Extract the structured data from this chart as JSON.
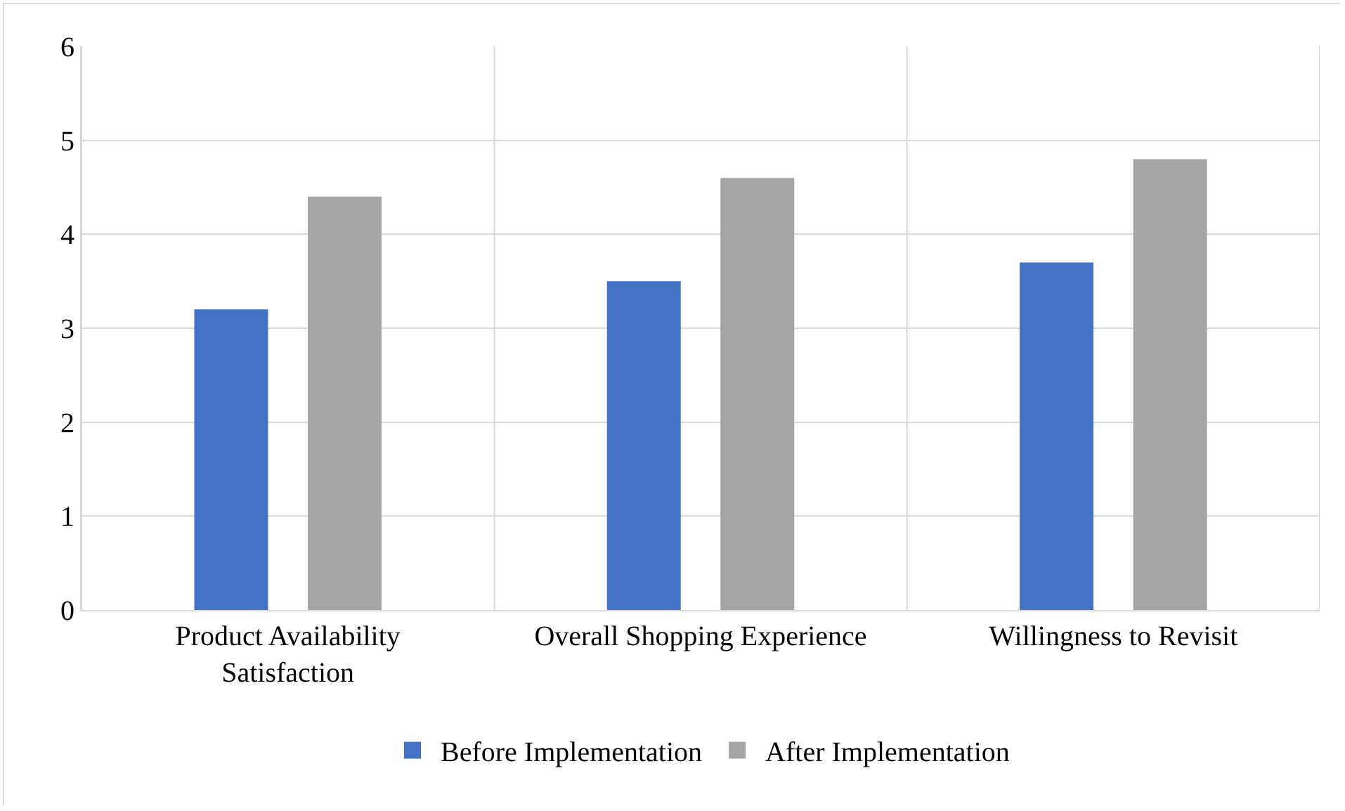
{
  "chart_data": {
    "type": "bar",
    "categories": [
      "Product Availability Satisfaction",
      "Overall Shopping Experience",
      "Willingness to Revisit"
    ],
    "series": [
      {
        "name": "Before Implementation",
        "color": "#4472c4",
        "values": [
          3.2,
          3.5,
          3.7
        ]
      },
      {
        "name": "After Implementation",
        "color": "#a5a5a5",
        "values": [
          4.4,
          4.6,
          4.8
        ]
      }
    ],
    "ylim": [
      0,
      6
    ],
    "yticks": [
      0,
      1,
      2,
      3,
      4,
      5,
      6
    ],
    "grid": true,
    "legend": "bottom"
  }
}
